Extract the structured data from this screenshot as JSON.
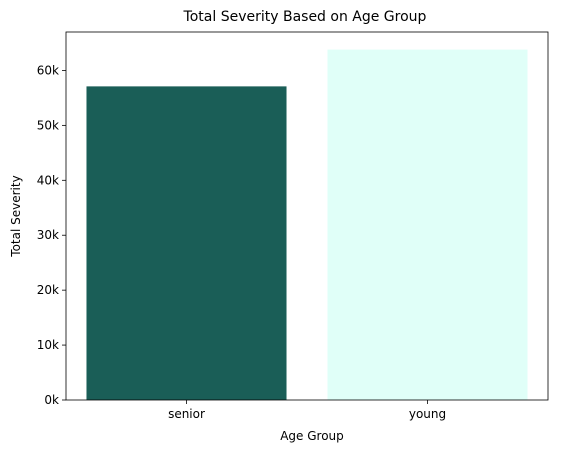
{
  "chart_data": {
    "type": "bar",
    "title": "Total Severity Based on Age Group",
    "xlabel": "Age Group",
    "ylabel": "Total Severity",
    "categories": [
      "senior",
      "young"
    ],
    "values": [
      57100,
      63800
    ],
    "colors": [
      "#1a5e57",
      "#e0fff8"
    ],
    "ylim": [
      0,
      67000
    ],
    "yticks": [
      0,
      10000,
      20000,
      30000,
      40000,
      50000,
      60000
    ],
    "ytick_labels": [
      "0k",
      "10k",
      "20k",
      "30k",
      "40k",
      "50k",
      "60k"
    ],
    "grid": false,
    "legend": "none"
  }
}
